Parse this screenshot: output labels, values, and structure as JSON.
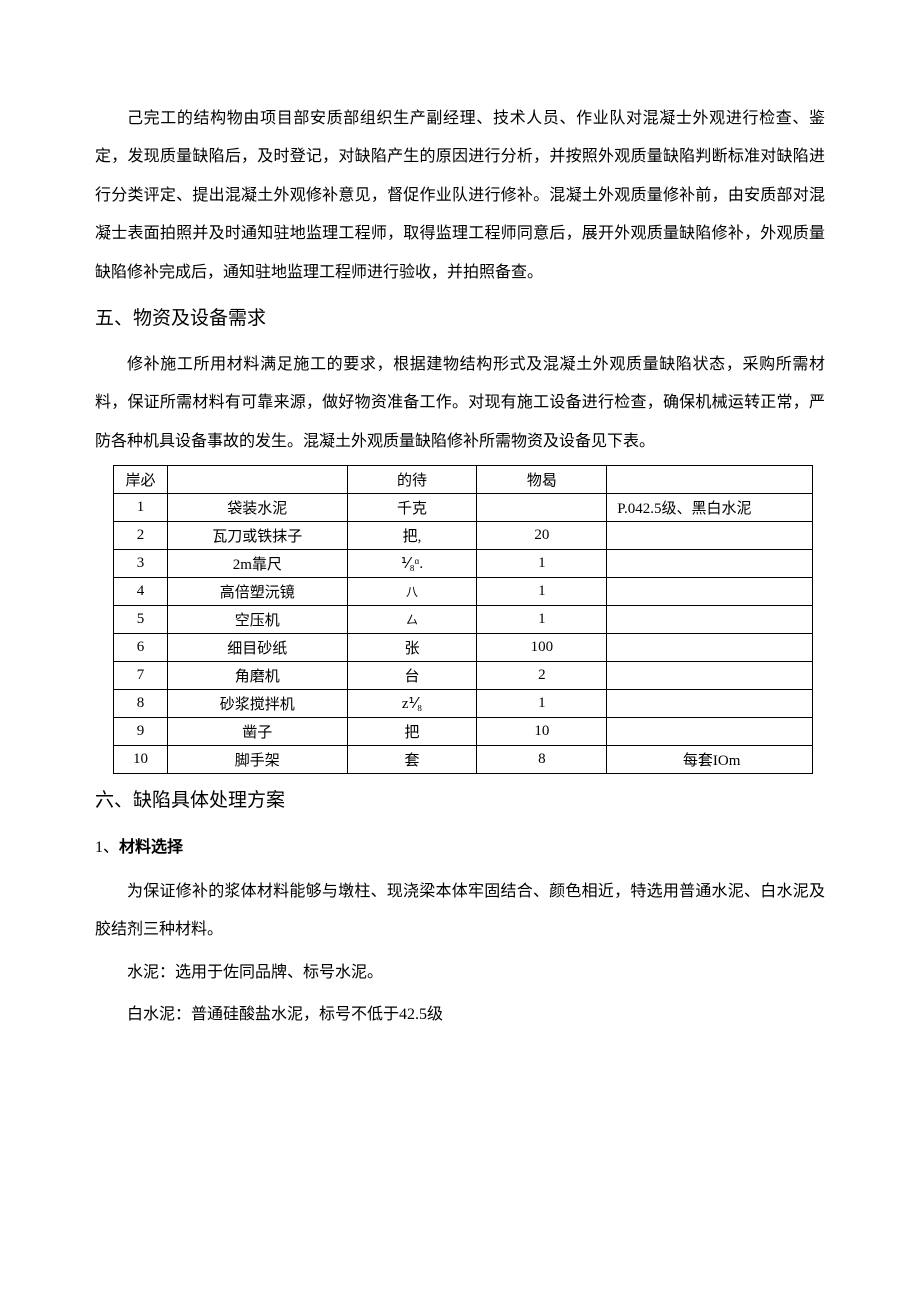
{
  "paragraphs": {
    "p1": "己完工的结构物由项目部安质部组织生产副经理、技术人员、作业队对混凝士外观进行检查、鉴定，发现质量缺陷后，及时登记，对缺陷产生的原因进行分析，并按照外观质量缺陷判断标准对缺陷进行分类评定、提出混凝土外观修补意见，督促作业队进行修补。混凝土外观质量修补前，由安质部对混凝士表面拍照并及时通知驻地监理工程师，取得监理工程师同意后，展开外观质量缺陷修补，外观质量缺陷修补完成后，通知驻地监理工程师进行验收，并拍照备查。",
    "h2_5": "五、物资及设备需求",
    "p2": "修补施工所用材料满足施工的要求，根据建物结构形式及混凝土外观质量缺陷状态，采购所需材料，保证所需材料有可靠来源，做好物资准备工作。对现有施工设备进行检查，确保机械运转正常，严防各种机具设备事故的发生。混凝土外观质量缺陷修补所需物资及设备见下表。",
    "h2_6": "六、缺陷具体处理方案",
    "h3_1_prefix": "1、",
    "h3_1_title": "材料选择",
    "p3": "为保证修补的浆体材料能够与墩柱、现浇梁本体牢固结合、颜色相近，特选用普通水泥、白水泥及胶结剂三种材料。",
    "p4": "水泥：选用于佐同品牌、标号水泥。",
    "p5": "白水泥：普通硅酸盐水泥，标号不低于42.5级"
  },
  "table": {
    "headers": {
      "seq": "岸必",
      "name": "",
      "unit": "的待",
      "qty": "物曷",
      "note": ""
    },
    "rows": [
      {
        "seq": "1",
        "name": "袋装水泥",
        "unit": "千克",
        "qty": "",
        "note": "P.042.5级、黑白水泥",
        "note_align": "left"
      },
      {
        "seq": "2",
        "name": "瓦刀或铁抹子",
        "unit": "把,",
        "qty": "20",
        "note": "",
        "note_align": "left"
      },
      {
        "seq": "3",
        "name": "2m靠尺",
        "unit": "⅟₈ᵅ.",
        "qty": "1",
        "note": "",
        "note_align": "left"
      },
      {
        "seq": "4",
        "name": "高倍塑沅镜",
        "unit": "八",
        "unit_small": true,
        "qty": "1",
        "note": "",
        "note_align": "left"
      },
      {
        "seq": "5",
        "name": "空压机",
        "unit": "厶",
        "unit_small": true,
        "qty": "1",
        "note": "",
        "note_align": "left"
      },
      {
        "seq": "6",
        "name": "细目砂纸",
        "unit": "张",
        "qty": "100",
        "note": "",
        "note_align": "left"
      },
      {
        "seq": "7",
        "name": "角磨机",
        "unit": "台",
        "qty": "2",
        "note": "",
        "note_align": "left"
      },
      {
        "seq": "8",
        "name": "砂浆搅拌机",
        "unit": "z⅟₈",
        "qty": "1",
        "note": "",
        "note_align": "left"
      },
      {
        "seq": "9",
        "name": "凿子",
        "unit": "把",
        "qty": "10",
        "note": "",
        "note_align": "left"
      },
      {
        "seq": "10",
        "name": "脚手架",
        "unit": "套",
        "qty": "8",
        "note": "每套IOm",
        "note_align": "center"
      }
    ]
  }
}
